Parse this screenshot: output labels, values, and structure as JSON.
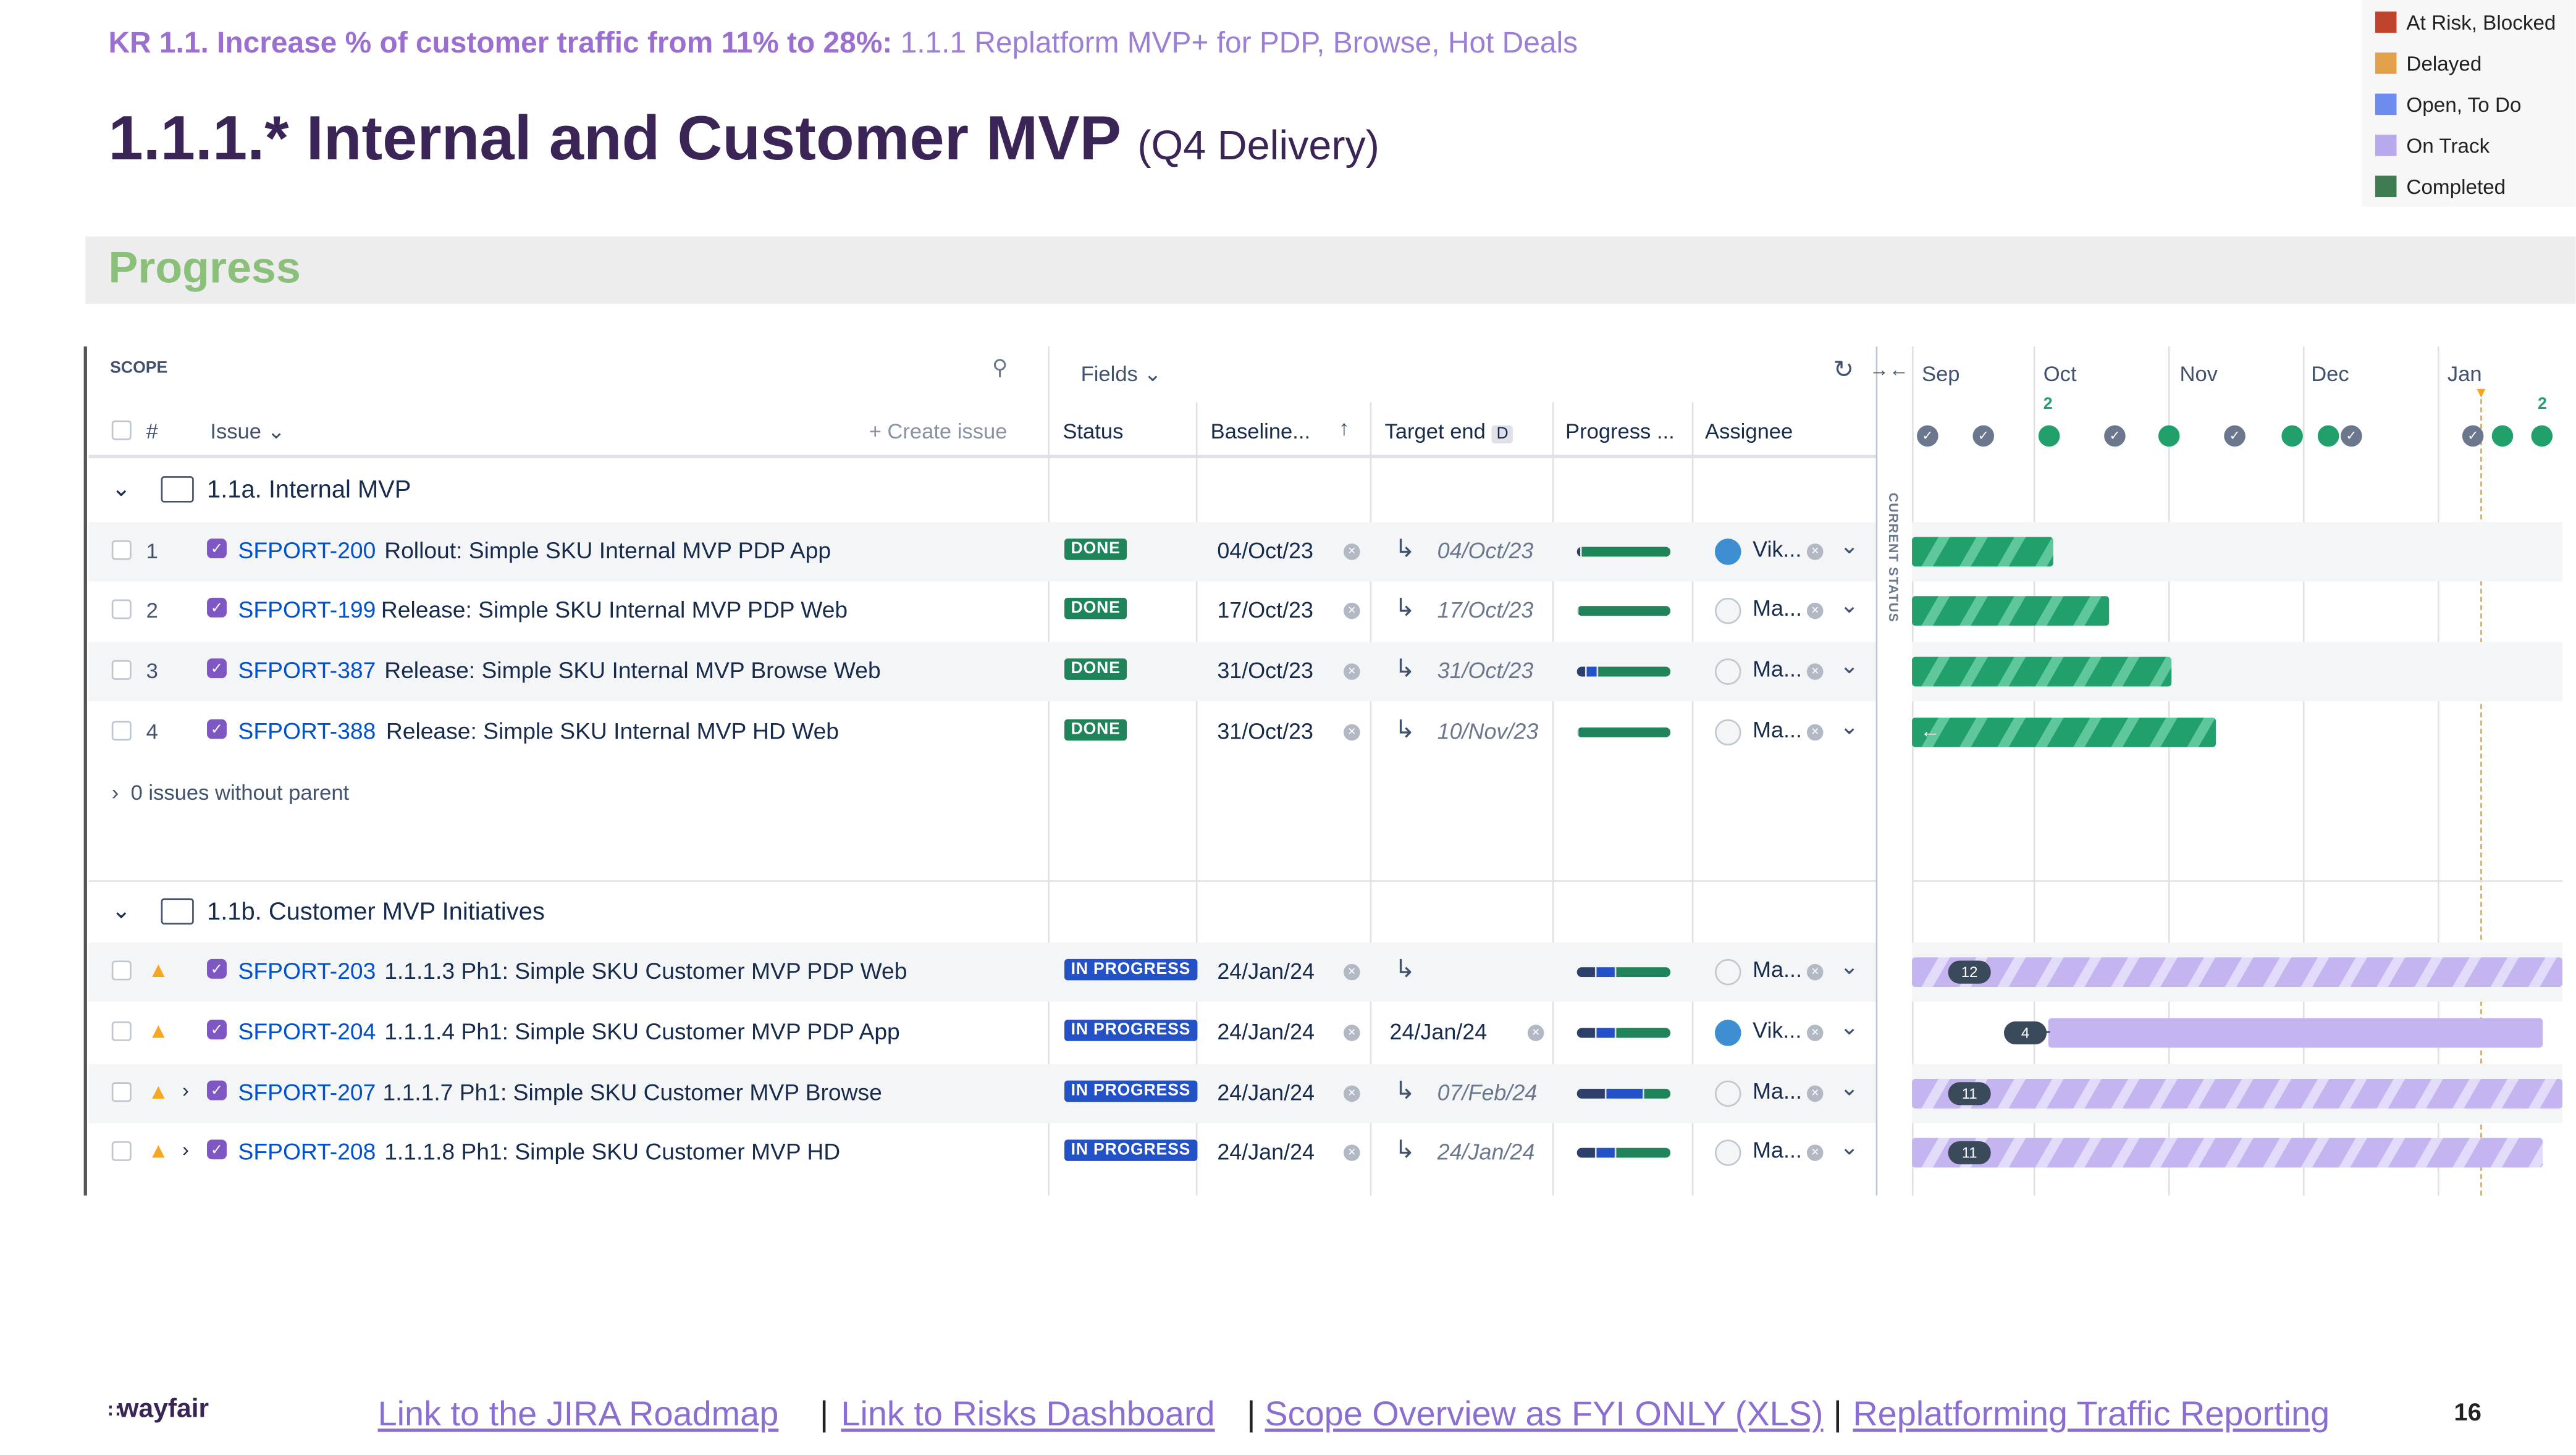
{
  "header": {
    "kr_bold": "KR 1.1. Increase % of customer traffic from 11% to 28%:",
    "kr_rest": "1.1.1 Replatform MVP+ for PDP, Browse, Hot Deals",
    "title": "1.1.1.* Internal and Customer MVP",
    "title_sub": "(Q4 Delivery)",
    "section": "Progress"
  },
  "legend": [
    {
      "label": "At Risk, Blocked",
      "color": "#c0432b"
    },
    {
      "label": "Delayed",
      "color": "#e2a04b"
    },
    {
      "label": "Open, To Do",
      "color": "#6d8cf0"
    },
    {
      "label": "On Track",
      "color": "#b8a9ec"
    },
    {
      "label": "Completed",
      "color": "#3f7c52"
    }
  ],
  "table": {
    "scope_label": "SCOPE",
    "fields_label": "Fields",
    "columns": {
      "num": "#",
      "issue": "Issue",
      "create": "+ Create issue",
      "status": "Status",
      "baseline": "Baseline...",
      "target": "Target end",
      "target_badge": "D",
      "progress": "Progress ...",
      "assignee": "Assignee"
    },
    "current_status": "CURRENT STATUS",
    "months": [
      "Sep",
      "Oct",
      "Nov",
      "Dec",
      "Jan"
    ],
    "month_markers": {
      "oct": "2",
      "jan": "2"
    },
    "groups": [
      {
        "title": "1.1a. Internal MVP"
      },
      {
        "title": "1.1b. Customer MVP Initiatives"
      }
    ],
    "no_parent": "0 issues without parent",
    "rows": [
      {
        "num": "1",
        "key": "SFPORT-200",
        "summary": "Rollout: Simple SKU Internal MVP PDP App",
        "status": "DONE",
        "baseline": "04/Oct/23",
        "target": "04/Oct/23",
        "assignee": "Vik...",
        "progress": [
          0.03,
          0,
          0.97
        ]
      },
      {
        "num": "2",
        "key": "SFPORT-199",
        "summary": "Release: Simple SKU Internal MVP PDP Web",
        "status": "DONE",
        "baseline": "17/Oct/23",
        "target": "17/Oct/23",
        "assignee": "Ma...",
        "progress": [
          0,
          0,
          1
        ]
      },
      {
        "num": "3",
        "key": "SFPORT-387",
        "summary": "Release: Simple SKU Internal MVP Browse Web",
        "status": "DONE",
        "baseline": "31/Oct/23",
        "target": "31/Oct/23",
        "assignee": "Ma...",
        "progress": [
          0.1,
          0.1,
          0.8
        ]
      },
      {
        "num": "4",
        "key": "SFPORT-388",
        "summary": "Release: Simple SKU Internal MVP HD Web",
        "status": "DONE",
        "baseline": "31/Oct/23",
        "target": "10/Nov/23",
        "assignee": "Ma...",
        "progress": [
          0,
          0,
          1
        ]
      },
      {
        "key": "SFPORT-203",
        "summary": "1.1.1.3 Ph1: Simple SKU Customer MVP PDP Web",
        "status": "IN PROGRESS",
        "baseline": "24/Jan/24",
        "target": "",
        "assignee": "Ma...",
        "count": "12",
        "progress": [
          0.2,
          0.2,
          0.6
        ]
      },
      {
        "key": "SFPORT-204",
        "summary": "1.1.1.4 Ph1: Simple SKU Customer MVP PDP App",
        "status": "IN PROGRESS",
        "baseline": "24/Jan/24",
        "target": "24/Jan/24",
        "assignee": "Vik...",
        "count": "4",
        "progress": [
          0.2,
          0.2,
          0.6
        ]
      },
      {
        "key": "SFPORT-207",
        "summary": "1.1.1.7 Ph1: Simple SKU Customer MVP Browse",
        "status": "IN PROGRESS",
        "baseline": "24/Jan/24",
        "target": "07/Feb/24",
        "assignee": "Ma...",
        "count": "11",
        "progress": [
          0.3,
          0.4,
          0.3
        ]
      },
      {
        "key": "SFPORT-208",
        "summary": "1.1.1.8 Ph1: Simple SKU Customer MVP HD",
        "status": "IN PROGRESS",
        "baseline": "24/Jan/24",
        "target": "24/Jan/24",
        "assignee": "Ma...",
        "count": "11",
        "progress": [
          0.2,
          0.2,
          0.6
        ]
      }
    ]
  },
  "footer": {
    "logo": "wayfair",
    "links": [
      "Link to the JIRA Roadmap",
      "Link to Risks Dashboard",
      "Scope Overview as FYI ONLY (XLS)",
      "Replatforming Traffic Reporting"
    ],
    "separator": "|",
    "page": "16"
  }
}
